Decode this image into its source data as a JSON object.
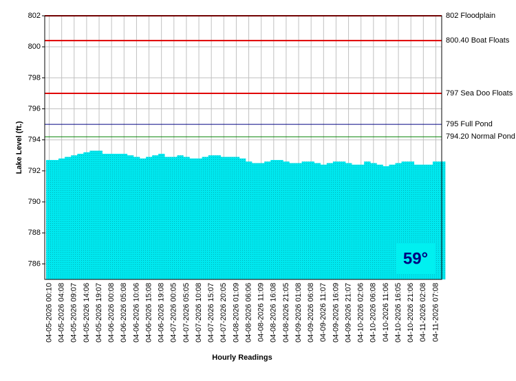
{
  "chart_data": {
    "type": "bar",
    "y_label": "Lake Level (ft.)",
    "x_label": "Hourly Readings",
    "annotation": "59°",
    "categories": [
      "04-05-2026 00:10",
      null,
      "04-05-2026 04:08",
      null,
      "04-05-2026 09:07",
      null,
      "04-05-2026 14:06",
      null,
      "04-05-2026 19:07",
      null,
      "04-06-2026 00:08",
      null,
      "04-06-2026 05:08",
      null,
      "04-06-2026 10:06",
      null,
      "04-06-2026 15:08",
      null,
      "04-06-2026 19:08",
      null,
      "04-07-2026 00:05",
      null,
      "04-07-2026 05:05",
      null,
      "04-07-2026 10:08",
      null,
      "04-07-2026 15:07",
      null,
      "04-07-2026 20:05",
      null,
      "04-08-2026 01:09",
      null,
      "04-08-2026 06:06",
      null,
      "04-08-2026 11:09",
      null,
      "04-08-2026 16:08",
      null,
      "04-08-2026 21:05",
      null,
      "04-09-2026 01:08",
      null,
      "04-09-2026 06:08",
      null,
      "04-09-2026 11:07",
      null,
      "04-09-2026 16:09",
      null,
      "04-09-2026 21:07",
      null,
      "04-10-2026 02:06",
      null,
      "04-10-2026 06:08",
      null,
      "04-10-2026 11:06",
      null,
      "04-10-2026 16:05",
      null,
      "04-10-2026 21:06",
      null,
      "04-11-2026 02:08",
      null,
      "04-11-2026 07:08",
      null
    ],
    "values": [
      792.7,
      792.7,
      792.8,
      792.9,
      793.0,
      793.1,
      793.2,
      793.3,
      793.3,
      793.1,
      793.1,
      793.1,
      793.1,
      793.0,
      792.9,
      792.8,
      792.9,
      793.0,
      793.1,
      792.9,
      792.9,
      793.0,
      792.9,
      792.8,
      792.8,
      792.9,
      793.0,
      793.0,
      792.9,
      792.9,
      792.9,
      792.8,
      792.6,
      792.5,
      792.5,
      792.6,
      792.7,
      792.7,
      792.6,
      792.5,
      792.5,
      792.6,
      792.6,
      792.5,
      792.4,
      792.5,
      792.6,
      792.6,
      792.5,
      792.4,
      792.4,
      792.6,
      792.5,
      792.4,
      792.3,
      792.4,
      792.5,
      792.6,
      792.6,
      792.4,
      792.4,
      792.4,
      792.6,
      792.6
    ],
    "color": "#00e8ef",
    "ylim": [
      785,
      802
    ],
    "yticks": [
      786,
      788,
      790,
      792,
      794,
      796,
      798,
      800,
      802
    ],
    "grid": true,
    "reference_lines": [
      {
        "value": 802,
        "label": "802 Floodplain",
        "color": "#e00000"
      },
      {
        "value": 800.4,
        "label": "800.40 Boat Floats",
        "color": "#e00000"
      },
      {
        "value": 797,
        "label": "797 Sea Doo Floats",
        "color": "#e00000"
      },
      {
        "value": 795,
        "label": "795 Full Pond",
        "color": "#000080"
      },
      {
        "value": 794.2,
        "label": "794.20 Normal Pond",
        "color": "#008000"
      }
    ]
  }
}
